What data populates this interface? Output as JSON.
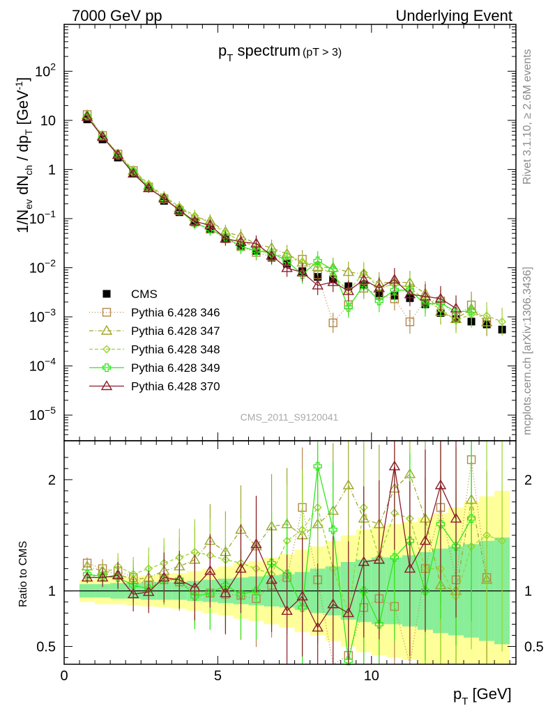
{
  "header": {
    "left": "7000 GeV pp",
    "right": "Underlying Event"
  },
  "title": {
    "main": "p",
    "sub": "T",
    "rest": " spectrum",
    "cut": "(pT >  3)"
  },
  "side_labels": {
    "rivet": "Rivet 3.1.10, ≥ 2.6M events",
    "mcplots": "mcplots.cern.ch [arXiv:1306.3436]"
  },
  "watermark": "CMS_2011_S9120041",
  "ylabel_main": {
    "a": "1/N",
    "b": "ev",
    "c": " dN",
    "d": "ch",
    "e": " / dp",
    "f": "T",
    "g": " [GeV",
    "h": "-1",
    "i": "]"
  },
  "ylabel_ratio": "Ratio to CMS",
  "xlabel": {
    "a": "p",
    "b": "T",
    "c": " [GeV]"
  },
  "legend": [
    {
      "label": "CMS",
      "color": "#000000",
      "marker": "square-filled",
      "dash": "none"
    },
    {
      "label": "Pythia 6.428 346",
      "color": "#b5874a",
      "marker": "square-open",
      "dash": "1,3"
    },
    {
      "label": "Pythia 6.428 347",
      "color": "#9da62a",
      "marker": "triangle-open",
      "dash": "6,3,1,3"
    },
    {
      "label": "Pythia 6.428 348",
      "color": "#9ad330",
      "marker": "diamond-open",
      "dash": "5,3"
    },
    {
      "label": "Pythia 6.428 349",
      "color": "#2ee81a",
      "marker": "cross-open",
      "dash": "none"
    },
    {
      "label": "Pythia 6.428 370",
      "color": "#8b1a2b",
      "marker": "triangle-open",
      "dash": "none"
    }
  ],
  "chart_data": {
    "type": "scatter",
    "x_axis": {
      "label": "p_T [GeV]",
      "range": [
        0,
        15
      ],
      "ticks": [
        "0",
        "5",
        "10"
      ]
    },
    "y_axis_main": {
      "scale": "log",
      "range": [
        3e-06,
        900
      ],
      "ticks": [
        "10^-5",
        "10^-4",
        "10^-3",
        "10^-2",
        "10^-1",
        "1",
        "10",
        "10^2"
      ]
    },
    "y_axis_ratio": {
      "range": [
        0.34,
        2.35
      ],
      "ticks": [
        "0.5",
        "1",
        "2"
      ]
    },
    "x": [
      0.75,
      1.25,
      1.75,
      2.25,
      2.75,
      3.25,
      3.75,
      4.25,
      4.75,
      5.25,
      5.75,
      6.25,
      6.75,
      7.25,
      7.75,
      8.25,
      8.75,
      9.25,
      9.75,
      10.25,
      10.75,
      11.25,
      11.75,
      12.25,
      12.75,
      13.25,
      13.75,
      14.25
    ],
    "cms": [
      10.5,
      4.1,
      1.75,
      0.85,
      0.42,
      0.23,
      0.135,
      0.085,
      0.062,
      0.04,
      0.028,
      0.022,
      0.016,
      0.012,
      0.0085,
      0.0065,
      0.0058,
      0.0042,
      0.0045,
      0.003,
      0.0027,
      0.0024,
      0.0018,
      0.0012,
      0.0009,
      0.0008,
      0.0007,
      0.00055
    ],
    "band_inner": [
      0.06,
      0.06,
      0.07,
      0.07,
      0.08,
      0.08,
      0.08,
      0.09,
      0.1,
      0.11,
      0.12,
      0.13,
      0.14,
      0.15,
      0.17,
      0.2,
      0.22,
      0.26,
      0.28,
      0.3,
      0.3,
      0.32,
      0.35,
      0.38,
      0.4,
      0.42,
      0.45,
      0.48
    ],
    "band_outer": [
      0.1,
      0.12,
      0.12,
      0.13,
      0.14,
      0.15,
      0.16,
      0.18,
      0.2,
      0.22,
      0.25,
      0.27,
      0.3,
      0.33,
      0.37,
      0.4,
      0.45,
      0.5,
      0.55,
      0.58,
      0.6,
      0.62,
      0.66,
      0.7,
      0.75,
      0.8,
      0.85,
      0.9
    ],
    "series": [
      {
        "name": "Pythia 6.428 346",
        "ratio": [
          1.25,
          1.2,
          1.18,
          1.12,
          1.05,
          1.1,
          1.08,
          1.0,
          0.98,
          0.97,
          0.96,
          0.93,
          1.05,
          1.12,
          1.75,
          1.1,
          0.13,
          0.42,
          0.85,
          0.93,
          0.86,
          0.33,
          1.2,
          1.75,
          1.1,
          2.18,
          1.12,
          null
        ]
      },
      {
        "name": "Pythia 6.428 347",
        "ratio": [
          1.22,
          1.18,
          1.15,
          1.1,
          1.12,
          1.18,
          1.22,
          1.28,
          1.45,
          1.35,
          1.55,
          1.4,
          1.58,
          1.6,
          1.5,
          1.6,
          1.72,
          1.95,
          1.65,
          1.6,
          1.92,
          2.05,
          1.65,
          1.05,
          1.0,
          1.82,
          1.1,
          null
        ]
      },
      {
        "name": "Pythia 6.428 348",
        "ratio": [
          1.12,
          1.15,
          1.22,
          1.15,
          1.2,
          1.25,
          1.3,
          1.35,
          1.32,
          1.28,
          1.25,
          1.2,
          1.15,
          1.45,
          1.55,
          1.75,
          1.2,
          0.8,
          1.75,
          1.3,
          1.7,
          1.65,
          1.2,
          1.2,
          0.95,
          1.4,
          1.5,
          1.45
        ]
      },
      {
        "name": "Pythia 6.428 349",
        "ratio": [
          1.15,
          1.13,
          1.12,
          1.05,
          1.02,
          1.1,
          1.1,
          0.95,
          0.98,
          1.05,
          0.97,
          1.0,
          1.25,
          1.15,
          0.85,
          2.12,
          1.55,
          0.37,
          1.0,
          0.7,
          1.3,
          1.45,
          1.0,
          1.6,
          1.4,
          1.65,
          null,
          null
        ]
      },
      {
        "name": "Pythia 6.428 370",
        "ratio": [
          1.12,
          1.12,
          1.14,
          0.97,
          0.99,
          1.12,
          1.1,
          1.03,
          1.18,
          0.98,
          1.2,
          1.42,
          1.1,
          0.82,
          0.95,
          0.67,
          0.88,
          0.8,
          1.26,
          1.28,
          2.12,
          1.2,
          1.45,
          1.95,
          1.65,
          null,
          null,
          null
        ]
      }
    ]
  }
}
